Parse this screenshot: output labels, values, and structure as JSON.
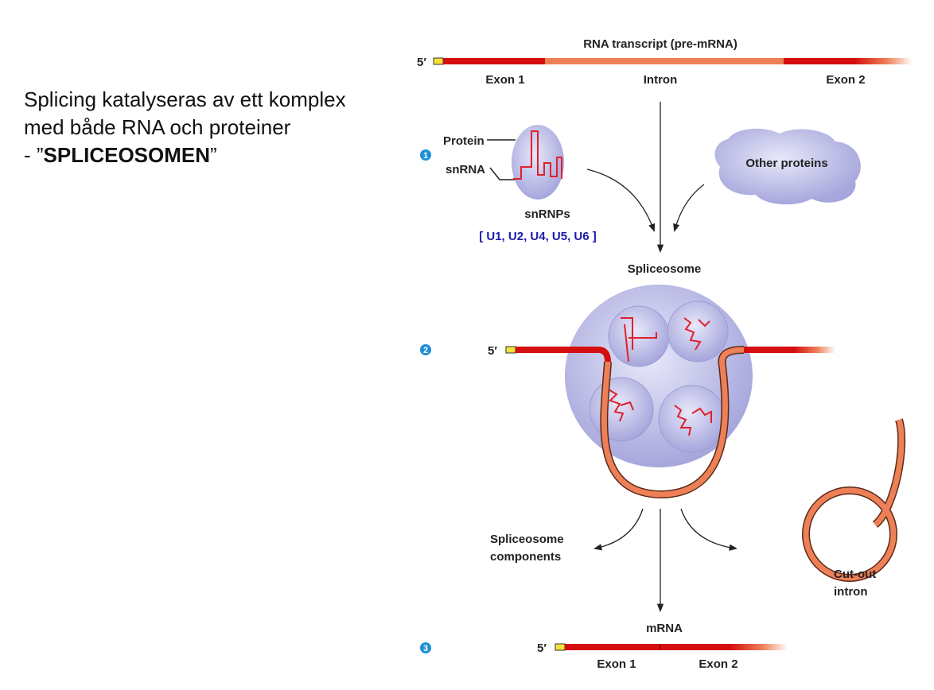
{
  "slide_text": {
    "line1": "Splicing katalyseras av ett komplex",
    "line2": "med både RNA och proteiner",
    "line3_prefix": " - ”",
    "line3_bold": "SPLICEOSOMEN",
    "line3_suffix": "”"
  },
  "diagram": {
    "title": "RNA transcript (pre-mRNA)",
    "five_prime": "5′",
    "exon1": "Exon 1",
    "intron": "Intron",
    "exon2": "Exon 2",
    "steps": [
      "1",
      "2",
      "3"
    ],
    "protein_label": "Protein",
    "snrna_label": "snRNA",
    "snrnps_label": "snRNPs",
    "snrnp_list": "[ U1, U2, U4, U5, U6 ]",
    "other_proteins": "Other proteins",
    "spliceosome": "Spliceosome",
    "components_line1": "Spliceosome",
    "components_line2": "components",
    "cutout_line1": "Cut-out",
    "cutout_line2": "intron",
    "mrna": "mRNA",
    "colors": {
      "exon": "#d50f10",
      "intron": "#ee8057",
      "cap": "#f3e33a",
      "particle": "#b4b4e6",
      "step_badge": "#1e8fd6",
      "snrnp_list": "#1a1aa8"
    }
  }
}
